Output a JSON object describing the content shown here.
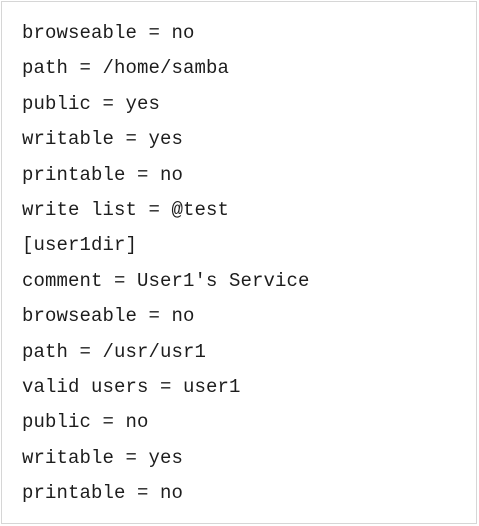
{
  "document": {
    "lines": [
      "browseable = no",
      "path = /home/samba",
      "public = yes",
      "writable = yes",
      "printable = no",
      "write list = @test",
      "[user1dir]",
      "comment = User1's Service",
      "browseable = no",
      "path = /usr/usr1",
      "valid users = user1",
      "public = no",
      "writable = yes",
      "printable = no"
    ]
  }
}
